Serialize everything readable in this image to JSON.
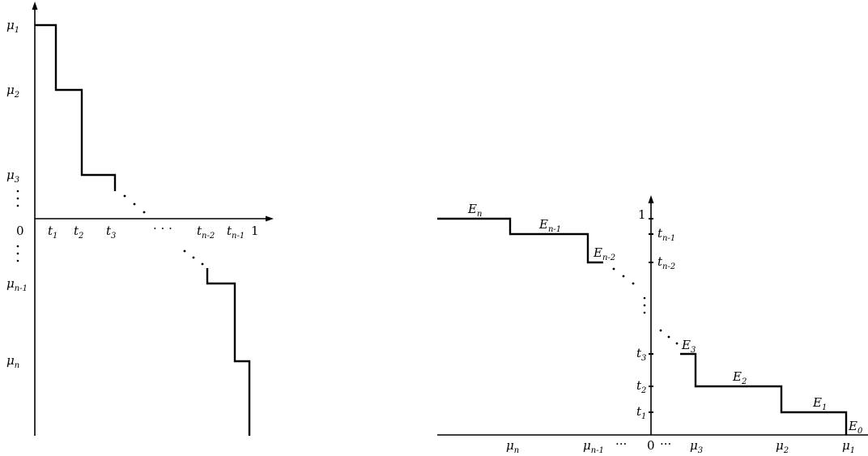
{
  "left_diagram": {
    "y_labels": {
      "mu1": {
        "base": "μ",
        "sub": "1"
      },
      "mu2": {
        "base": "μ",
        "sub": "2"
      },
      "mu3": {
        "base": "μ",
        "sub": "3"
      },
      "mun1": {
        "base": "μ",
        "sub": "n-1"
      },
      "mun": {
        "base": "μ",
        "sub": "n"
      }
    },
    "origin": "0",
    "x_labels": {
      "t1": {
        "base": "t",
        "sub": "1"
      },
      "t2": {
        "base": "t",
        "sub": "2"
      },
      "t3": {
        "base": "t",
        "sub": "3"
      },
      "tn2": {
        "base": "t",
        "sub": "n-2"
      },
      "tn1": {
        "base": "t",
        "sub": "n-1"
      }
    },
    "one": "1",
    "hdots": "· · ·"
  },
  "right_diagram": {
    "one": "1",
    "y_labels": {
      "tn1": {
        "base": "t",
        "sub": "n-1"
      },
      "tn2": {
        "base": "t",
        "sub": "n-2"
      },
      "t3": {
        "base": "t",
        "sub": "3"
      },
      "t2": {
        "base": "t",
        "sub": "2"
      },
      "t1": {
        "base": "t",
        "sub": "1"
      }
    },
    "x_labels": {
      "mun": {
        "base": "μ",
        "sub": "n"
      },
      "mun1": {
        "base": "μ",
        "sub": "n-1"
      },
      "mu3": {
        "base": "μ",
        "sub": "3"
      },
      "mu2": {
        "base": "μ",
        "sub": "2"
      },
      "mu1": {
        "base": "μ",
        "sub": "1"
      }
    },
    "origin": "0",
    "hdots_left": "···",
    "hdots_right": "···",
    "segments": {
      "En": {
        "base": "E",
        "sub": "n"
      },
      "En1": {
        "base": "E",
        "sub": "n-1"
      },
      "En2": {
        "base": "E",
        "sub": "n-2"
      },
      "E3": {
        "base": "E",
        "sub": "3"
      },
      "E2": {
        "base": "E",
        "sub": "2"
      },
      "E1": {
        "base": "E",
        "sub": "1"
      },
      "E0": {
        "base": "E",
        "sub": "0"
      }
    }
  }
}
